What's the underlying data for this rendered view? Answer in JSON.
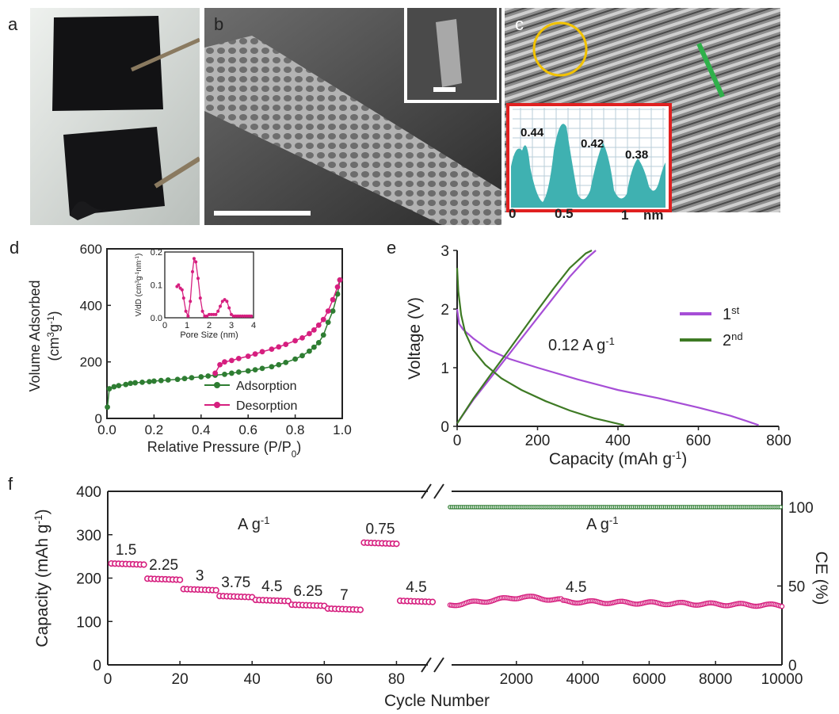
{
  "panels": {
    "a": {
      "label": "a"
    },
    "b": {
      "label": "b"
    },
    "c": {
      "label": "c",
      "peaks": [
        "0.44",
        "0.42",
        "0.38"
      ],
      "axis_ticks": [
        "0",
        "0.5",
        "1"
      ],
      "axis_unit": "nm"
    },
    "d": {
      "label": "d"
    },
    "e": {
      "label": "e"
    },
    "f": {
      "label": "f"
    }
  },
  "colors": {
    "magenta": "#d61f7f",
    "green": "#2e7d32",
    "purple": "#a64ed6",
    "dark_green": "#3e7a24",
    "teal": "#3fb1b1",
    "red_box": "#e02020",
    "yellow": "#f2c200"
  },
  "chart_data": [
    {
      "id": "d",
      "type": "line",
      "xlabel": "Relative Pressure (P/P",
      "xlabel_sub": "0",
      "xlabel_end": ")",
      "ylabel": "Volume Adsorbed",
      "ylabel2": "(cm",
      "ylabel2_sup1": "3",
      "ylabel2_mid": "g",
      "ylabel2_sup2": "-1",
      "ylabel2_end": ")",
      "xlim": [
        0,
        1
      ],
      "ylim": [
        0,
        600
      ],
      "xticks": [
        "0.0",
        "0.2",
        "0.4",
        "0.6",
        "0.8",
        "1.0"
      ],
      "yticks": [
        "0",
        "200",
        "400",
        "600"
      ],
      "legend": [
        "Adsorption",
        "Desorption"
      ],
      "series": [
        {
          "name": "Adsorption",
          "x": [
            0.002,
            0.01,
            0.03,
            0.05,
            0.08,
            0.1,
            0.12,
            0.15,
            0.18,
            0.2,
            0.23,
            0.26,
            0.3,
            0.33,
            0.36,
            0.4,
            0.43,
            0.46,
            0.5,
            0.53,
            0.56,
            0.6,
            0.63,
            0.66,
            0.7,
            0.73,
            0.76,
            0.8,
            0.83,
            0.86,
            0.88,
            0.9,
            0.92,
            0.94,
            0.96,
            0.98,
            0.99
          ],
          "y": [
            40,
            105,
            112,
            116,
            120,
            124,
            126,
            128,
            130,
            132,
            134,
            136,
            138,
            141,
            144,
            147,
            150,
            153,
            156,
            160,
            164,
            168,
            172,
            177,
            183,
            190,
            198,
            210,
            222,
            238,
            252,
            268,
            295,
            340,
            380,
            440,
            490
          ]
        },
        {
          "name": "Desorption",
          "x": [
            0.46,
            0.48,
            0.5,
            0.53,
            0.56,
            0.6,
            0.63,
            0.66,
            0.7,
            0.73,
            0.76,
            0.8,
            0.83,
            0.86,
            0.88,
            0.9,
            0.92,
            0.94,
            0.96,
            0.98,
            0.99
          ],
          "y": [
            160,
            190,
            200,
            205,
            212,
            220,
            228,
            236,
            245,
            253,
            262,
            275,
            285,
            300,
            313,
            330,
            350,
            380,
            420,
            465,
            490
          ]
        }
      ],
      "inset": {
        "xlabel": "Pore Size (nm)",
        "ylabel": "V/dD (cm",
        "xlim": [
          0,
          4
        ],
        "ylim": [
          0,
          0.2
        ],
        "xticks": [
          "0",
          "1",
          "2",
          "3",
          "4"
        ],
        "yticks": [
          "0.0",
          "0.1",
          "0.2"
        ],
        "x": [
          0.55,
          0.62,
          0.7,
          0.78,
          0.85,
          0.95,
          1.05,
          1.15,
          1.25,
          1.32,
          1.4,
          1.5,
          1.6,
          1.7,
          1.8,
          1.9,
          2.0,
          2.1,
          2.2,
          2.3,
          2.4,
          2.5,
          2.6,
          2.7,
          2.8,
          2.9,
          3.0,
          3.1,
          3.2,
          3.3,
          3.4,
          3.5,
          3.6,
          3.7,
          3.8,
          3.9
        ],
        "y": [
          0.095,
          0.1,
          0.09,
          0.085,
          0.06,
          0.02,
          0.005,
          0.05,
          0.14,
          0.18,
          0.17,
          0.12,
          0.06,
          0.02,
          0.005,
          0.005,
          0.01,
          0.01,
          0.01,
          0.01,
          0.02,
          0.035,
          0.05,
          0.055,
          0.05,
          0.03,
          0.01,
          0.005,
          0.005,
          0.005,
          0.005,
          0.005,
          0.005,
          0.005,
          0.005,
          0.005
        ]
      }
    },
    {
      "id": "e",
      "type": "line",
      "xlabel": "Capacity (mAh g",
      "xlabel_sup": "-1",
      "xlabel_end": ")",
      "ylabel": "Voltage (V)",
      "xlim": [
        0,
        800
      ],
      "ylim": [
        0,
        3
      ],
      "xticks": [
        "0",
        "200",
        "400",
        "600",
        "800"
      ],
      "yticks": [
        "0",
        "1",
        "2",
        "3"
      ],
      "annotation": "0.12 A g",
      "annotation_sup": "-1",
      "legend": [
        {
          "base": "1",
          "sup": "st"
        },
        {
          "base": "2",
          "sup": "nd"
        }
      ],
      "series": [
        {
          "name": "1st discharge",
          "x": [
            0,
            5,
            15,
            40,
            80,
            130,
            200,
            300,
            400,
            500,
            600,
            680,
            720,
            750
          ],
          "y": [
            2.0,
            1.75,
            1.65,
            1.5,
            1.3,
            1.15,
            1.0,
            0.8,
            0.62,
            0.48,
            0.32,
            0.18,
            0.09,
            0.02
          ]
        },
        {
          "name": "1st charge",
          "x": [
            0,
            40,
            80,
            120,
            160,
            200,
            240,
            280,
            320,
            345
          ],
          "y": [
            0.05,
            0.45,
            0.8,
            1.15,
            1.5,
            1.85,
            2.2,
            2.55,
            2.85,
            3.0
          ]
        },
        {
          "name": "2nd discharge",
          "x": [
            0,
            3,
            10,
            20,
            40,
            70,
            110,
            160,
            220,
            280,
            340,
            390,
            415
          ],
          "y": [
            2.7,
            2.3,
            1.9,
            1.6,
            1.3,
            1.05,
            0.82,
            0.62,
            0.43,
            0.27,
            0.14,
            0.06,
            0.02
          ]
        },
        {
          "name": "2nd charge",
          "x": [
            0,
            40,
            80,
            120,
            160,
            200,
            240,
            280,
            320,
            335
          ],
          "y": [
            0.05,
            0.47,
            0.85,
            1.22,
            1.6,
            1.98,
            2.35,
            2.7,
            2.95,
            3.0
          ]
        }
      ]
    },
    {
      "id": "f",
      "type": "scatter",
      "xlabel": "Cycle Number",
      "ylabel": "Capacity (mAh g",
      "ylabel_sup": "-1",
      "ylabel_end": ")",
      "y2label": "CE (%)",
      "ylim": [
        0,
        400
      ],
      "y2lim": [
        0,
        110
      ],
      "xlim_left": [
        0,
        90
      ],
      "xlim_right": [
        0,
        10000
      ],
      "xticks_left": [
        "0",
        "20",
        "40",
        "60",
        "80"
      ],
      "xticks_right": [
        "2000",
        "4000",
        "6000",
        "8000",
        "10000"
      ],
      "yticks": [
        "0",
        "100",
        "200",
        "300",
        "400"
      ],
      "y2ticks": [
        "0",
        "50",
        "100"
      ],
      "rate_unit_left": "A g",
      "rate_unit_right": "A g",
      "rate_unit_sup": "-1",
      "rates": [
        {
          "label": "1.5",
          "x": [
            1,
            10
          ],
          "y": 232
        },
        {
          "label": "2.25",
          "x": [
            11,
            20
          ],
          "y": 197
        },
        {
          "label": "3",
          "x": [
            21,
            30
          ],
          "y": 173
        },
        {
          "label": "3.75",
          "x": [
            31,
            40
          ],
          "y": 157
        },
        {
          "label": "4.5",
          "x": [
            41,
            50
          ],
          "y": 148
        },
        {
          "label": "6.25",
          "x": [
            51,
            60
          ],
          "y": 137
        },
        {
          "label": "7",
          "x": [
            61,
            70
          ],
          "y": 128
        },
        {
          "label": "0.75",
          "x": [
            71,
            80
          ],
          "y": 280
        },
        {
          "label": "4.5",
          "x": [
            81,
            90
          ],
          "y": 146
        }
      ],
      "long_cycle": {
        "label": "4.5",
        "capacity_start": 138,
        "capacity_peak": 157,
        "capacity_end": 137,
        "ce": 100
      }
    }
  ]
}
